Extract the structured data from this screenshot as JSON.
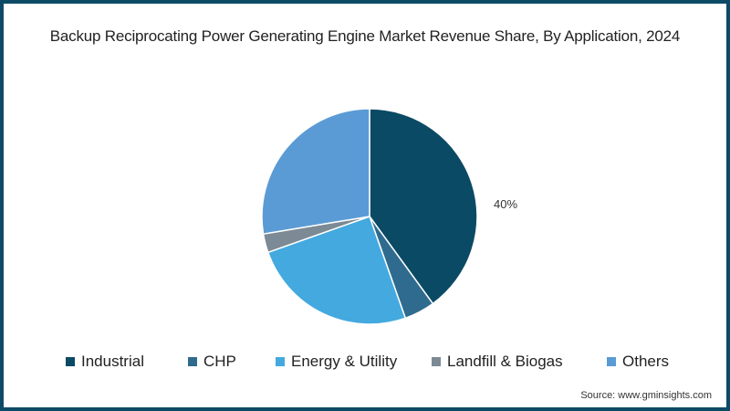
{
  "title": "Backup Reciprocating Power Generating Engine Market Revenue Share, By Application, 2024",
  "source": "Source: www.gminsights.com",
  "data_label": "40%",
  "colors": {
    "border": "#0d4a66",
    "Industrial": "#0b4a64",
    "CHP": "#2f6b8e",
    "Energy & Utility": "#44a9df",
    "Landfill & Biogas": "#7c8a95",
    "Others": "#5b9bd5"
  },
  "legend": [
    {
      "label": "Industrial",
      "color": "#0b4a64"
    },
    {
      "label": "CHP",
      "color": "#2f6b8e"
    },
    {
      "label": "Energy & Utility",
      "color": "#44a9df"
    },
    {
      "label": "Landfill & Biogas",
      "color": "#7c8a95"
    },
    {
      "label": "Others",
      "color": "#5b9bd5"
    }
  ],
  "chart_data": {
    "type": "pie",
    "title": "Backup Reciprocating Power Generating Engine Market Revenue Share, By Application, 2024",
    "categories": [
      "Industrial",
      "CHP",
      "Energy & Utility",
      "Landfill & Biogas",
      "Others"
    ],
    "values": [
      40,
      4.6,
      25,
      2.8,
      27.6
    ],
    "labels_shown": {
      "Industrial": "40%"
    },
    "start_angle": "12 o'clock, clockwise",
    "legend_position": "bottom",
    "source": "www.gminsights.com"
  }
}
